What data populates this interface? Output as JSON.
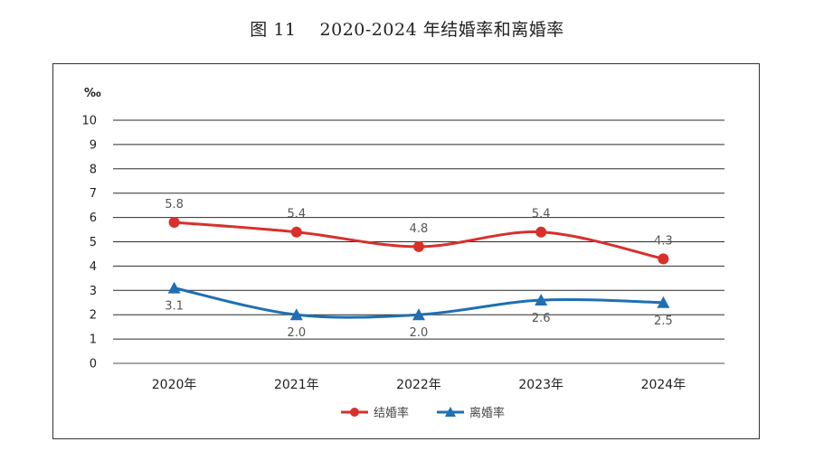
{
  "figure": {
    "title": "图 11　 2020-2024 年结婚率和离婚率"
  },
  "chart_data": {
    "type": "line",
    "title": "",
    "ylabel": "‰",
    "xlabel": "",
    "categories": [
      "2020年",
      "2021年",
      "2022年",
      "2023年",
      "2024年"
    ],
    "ylim": [
      0,
      10
    ],
    "yticks": [
      "0",
      "1",
      "2",
      "3",
      "4",
      "5",
      "6",
      "7",
      "8",
      "9",
      "10"
    ],
    "grid": true,
    "legend_position": "bottom",
    "series": [
      {
        "name": "结婚率",
        "values": [
          5.8,
          5.4,
          4.8,
          5.4,
          4.3
        ],
        "labels": [
          "5.8",
          "5.4",
          "4.8",
          "5.4",
          "4.3"
        ],
        "color": "#d9302c",
        "marker": "circle",
        "label_position": "above"
      },
      {
        "name": "离婚率",
        "values": [
          3.1,
          2.0,
          2.0,
          2.6,
          2.5
        ],
        "labels": [
          "3.1",
          "2.0",
          "2.0",
          "2.6",
          "2.5"
        ],
        "color": "#1f6fb4",
        "marker": "triangle",
        "label_position": "below"
      }
    ]
  }
}
